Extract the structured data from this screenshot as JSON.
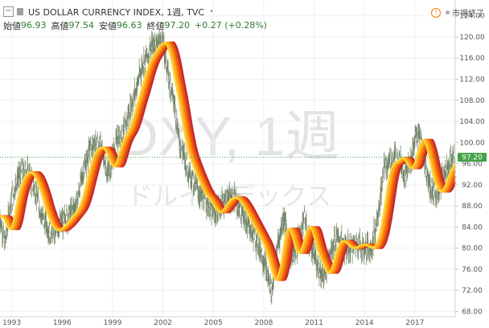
{
  "legend": {
    "title": "US DOLLAR CURRENCY INDEX, 1週, TVC",
    "open_label": "始値",
    "open_value": "96.93",
    "high_label": "高値",
    "high_value": "97.54",
    "low_label": "安値",
    "low_value": "96.63",
    "close_label": "終値",
    "close_value": "97.20",
    "change": "+0.27 (+0.28%)"
  },
  "status": {
    "label": "市場終了"
  },
  "watermark": {
    "symbol": "DXY, 1週",
    "name": "ドルインデックス"
  },
  "price_tag": "97.20",
  "colors": {
    "accent_green": "#2e7d32",
    "candle": "#6f8163",
    "ribbon": [
      "#c62828",
      "#e64a19",
      "#f57c00",
      "#ffa726",
      "#fdd835"
    ]
  },
  "chart_data": {
    "type": "line",
    "title": "US DOLLAR CURRENCY INDEX, 1週, TVC",
    "xlabel": "",
    "ylabel": "",
    "xlim": [
      1992.3,
      2019.4
    ],
    "ylim": [
      67,
      127
    ],
    "x_ticks": [
      "1993",
      "1996",
      "1999",
      "2002",
      "2005",
      "2008",
      "2011",
      "2014",
      "2017"
    ],
    "y_ticks": [
      "124.00",
      "120.00",
      "116.00",
      "112.00",
      "108.00",
      "104.00",
      "100.00",
      "96.00",
      "92.00",
      "88.00",
      "84.00",
      "80.00",
      "76.00",
      "72.00",
      "68.00"
    ],
    "current_price": 97.2,
    "series": [
      {
        "x": [
          1992.3,
          1992.6,
          1992.9,
          1993.3,
          1993.8,
          1994.3,
          1994.8,
          1995.3,
          1995.8,
          1996.3,
          1996.8,
          1997.3,
          1997.7,
          1998.3,
          1998.7,
          1999.0,
          1999.3,
          1999.7,
          2000.0,
          2000.4,
          2000.8,
          2001.2,
          2001.6,
          2002.0,
          2002.3,
          2002.7,
          2003.0,
          2003.4,
          2003.8,
          2004.2,
          2004.6,
          2005.0,
          2005.4,
          2005.9,
          2006.3,
          2006.8,
          2007.3,
          2007.8,
          2008.2,
          2008.5,
          2008.8,
          2009.2,
          2009.6,
          2010.0,
          2010.4,
          2010.8,
          2011.2,
          2011.6,
          2012.0,
          2012.4,
          2012.8,
          2013.2,
          2013.6,
          2014.0,
          2014.4,
          2014.8,
          2015.2,
          2015.6,
          2016.0,
          2016.4,
          2016.8,
          2017.0,
          2017.3,
          2017.7,
          2018.0,
          2018.3,
          2018.7,
          2019.0,
          2019.4
        ],
        "y": [
          86,
          81,
          88,
          93,
          95,
          92,
          86,
          83,
          84,
          86,
          88,
          95,
          99,
          99,
          94,
          97,
          101,
          102,
          106,
          110,
          115,
          117,
          119,
          119,
          113,
          107,
          100,
          96,
          93,
          90,
          89,
          86,
          88,
          90,
          89,
          86,
          83,
          80,
          75,
          72,
          80,
          86,
          78,
          80,
          86,
          80,
          77,
          74,
          80,
          82,
          80,
          80,
          81,
          80,
          80,
          86,
          96,
          96,
          98,
          94,
          97,
          101,
          101,
          94,
          91,
          90,
          94,
          96,
          97.2
        ]
      }
    ]
  }
}
